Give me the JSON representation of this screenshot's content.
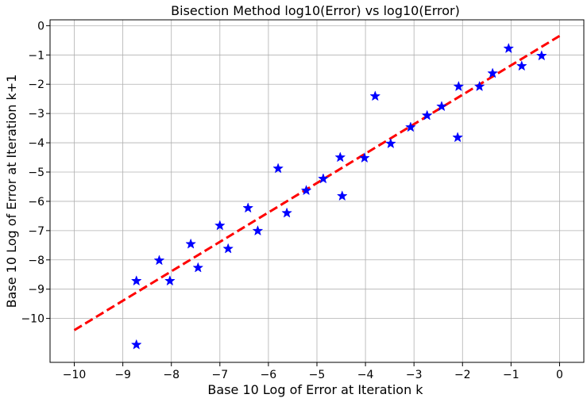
{
  "chart_data": {
    "type": "scatter",
    "title": "Bisection Method log10(Error) vs log10(Error)",
    "xlabel": "Base 10 Log of Error at Iteration k",
    "ylabel": "Base 10 Log of Error at Iteration k+1",
    "xlim": [
      -10.5,
      0.5
    ],
    "ylim": [
      -11.5,
      0.2
    ],
    "xticks": [
      -10,
      -9,
      -8,
      -7,
      -6,
      -5,
      -4,
      -3,
      -2,
      -1,
      0
    ],
    "yticks": [
      0,
      -1,
      -2,
      -3,
      -4,
      -5,
      -6,
      -7,
      -8,
      -9,
      -10
    ],
    "grid": true,
    "series": [
      {
        "marker": "star",
        "color": "#0000ff",
        "points": [
          [
            -1.05,
            -0.78
          ],
          [
            -0.37,
            -1.03
          ],
          [
            -0.78,
            -1.38
          ],
          [
            -1.38,
            -1.63
          ],
          [
            -1.65,
            -2.08
          ],
          [
            -2.08,
            -2.08
          ],
          [
            -2.43,
            -2.76
          ],
          [
            -2.73,
            -3.07
          ],
          [
            -3.07,
            -3.47
          ],
          [
            -2.1,
            -3.82
          ],
          [
            -3.8,
            -2.41
          ],
          [
            -3.48,
            -4.03
          ],
          [
            -4.02,
            -4.52
          ],
          [
            -4.52,
            -4.5
          ],
          [
            -4.87,
            -5.23
          ],
          [
            -5.22,
            -5.63
          ],
          [
            -5.8,
            -4.88
          ],
          [
            -5.62,
            -6.4
          ],
          [
            -4.48,
            -5.82
          ],
          [
            -6.42,
            -6.23
          ],
          [
            -6.22,
            -7.01
          ],
          [
            -7.0,
            -6.83
          ],
          [
            -6.83,
            -7.62
          ],
          [
            -7.6,
            -7.46
          ],
          [
            -7.45,
            -8.27
          ],
          [
            -8.25,
            -8.02
          ],
          [
            -8.03,
            -8.72
          ],
          [
            -8.72,
            -8.72
          ],
          [
            -8.72,
            -10.9
          ]
        ]
      },
      {
        "type": "line",
        "style": "dashed",
        "color": "#ff0000",
        "x": [
          -10,
          0
        ],
        "y": [
          -10.4,
          -0.35
        ]
      }
    ]
  }
}
